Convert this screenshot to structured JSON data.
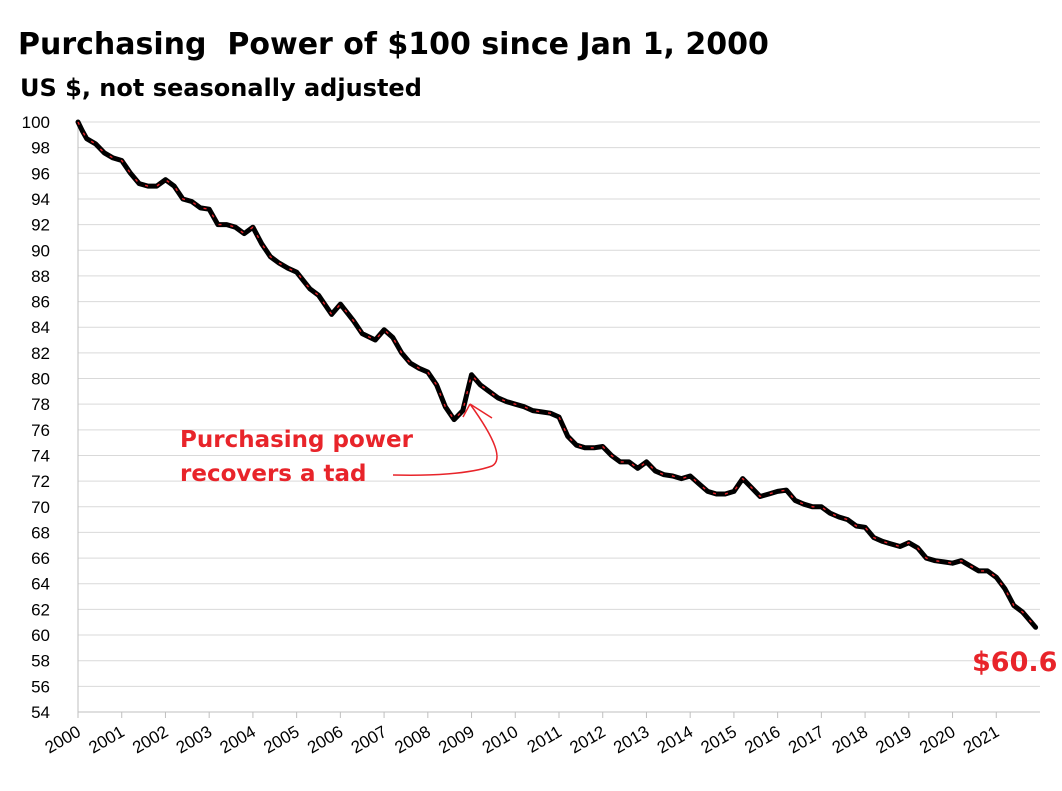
{
  "chart_data": {
    "type": "line",
    "title": "Purchasing  Power of $100 since Jan 1, 2000",
    "subtitle": "US $, not seasonally adjusted",
    "xlabel": "",
    "ylabel": "",
    "ylim": [
      54,
      100
    ],
    "xlim": [
      2000,
      2022
    ],
    "grid": true,
    "y_ticks": [
      "54",
      "56",
      "58",
      "60",
      "62",
      "64",
      "66",
      "68",
      "70",
      "72",
      "74",
      "76",
      "78",
      "80",
      "82",
      "84",
      "86",
      "88",
      "90",
      "92",
      "94",
      "96",
      "98",
      "100"
    ],
    "x_ticks": [
      "2000",
      "2001",
      "2002",
      "2003",
      "2004",
      "2005",
      "2006",
      "2007",
      "2008",
      "2009",
      "2010",
      "2011",
      "2012",
      "2013",
      "2014",
      "2015",
      "2016",
      "2017",
      "2018",
      "2019",
      "2020",
      "2021"
    ],
    "series": [
      {
        "name": "Purchasing power of $100",
        "color": "#000000",
        "highlight_color": "#e8242a",
        "x": [
          2000.0,
          2000.1,
          2000.2,
          2000.4,
          2000.6,
          2000.8,
          2001.0,
          2001.2,
          2001.4,
          2001.6,
          2001.8,
          2002.0,
          2002.2,
          2002.4,
          2002.6,
          2002.8,
          2003.0,
          2003.2,
          2003.4,
          2003.6,
          2003.8,
          2004.0,
          2004.2,
          2004.4,
          2004.6,
          2004.8,
          2005.0,
          2005.3,
          2005.5,
          2005.8,
          2006.0,
          2006.3,
          2006.5,
          2006.8,
          2007.0,
          2007.2,
          2007.4,
          2007.6,
          2007.8,
          2008.0,
          2008.2,
          2008.4,
          2008.6,
          2008.8,
          2009.0,
          2009.2,
          2009.4,
          2009.6,
          2009.8,
          2010.0,
          2010.2,
          2010.4,
          2010.6,
          2010.8,
          2011.0,
          2011.2,
          2011.4,
          2011.6,
          2011.8,
          2012.0,
          2012.2,
          2012.4,
          2012.6,
          2012.8,
          2013.0,
          2013.2,
          2013.4,
          2013.6,
          2013.8,
          2014.0,
          2014.2,
          2014.4,
          2014.6,
          2014.8,
          2015.0,
          2015.2,
          2015.4,
          2015.6,
          2015.8,
          2016.0,
          2016.2,
          2016.4,
          2016.6,
          2016.8,
          2017.0,
          2017.2,
          2017.4,
          2017.6,
          2017.8,
          2018.0,
          2018.2,
          2018.4,
          2018.6,
          2018.8,
          2019.0,
          2019.2,
          2019.4,
          2019.6,
          2019.8,
          2020.0,
          2020.2,
          2020.4,
          2020.6,
          2020.8,
          2021.0,
          2021.2,
          2021.4,
          2021.6,
          2021.8,
          2021.9
        ],
        "values": [
          100.0,
          99.3,
          98.7,
          98.3,
          97.6,
          97.2,
          97.0,
          96.0,
          95.2,
          95.0,
          95.0,
          95.5,
          95.0,
          94.0,
          93.8,
          93.3,
          93.2,
          92.0,
          92.0,
          91.8,
          91.3,
          91.8,
          90.5,
          89.5,
          89.0,
          88.6,
          88.3,
          87.0,
          86.5,
          85.0,
          85.8,
          84.5,
          83.5,
          83.0,
          83.8,
          83.2,
          82.0,
          81.2,
          80.8,
          80.5,
          79.5,
          77.8,
          76.8,
          77.5,
          80.3,
          79.5,
          79.0,
          78.5,
          78.2,
          78.0,
          77.8,
          77.5,
          77.4,
          77.3,
          77.0,
          75.5,
          74.8,
          74.6,
          74.6,
          74.7,
          74.0,
          73.5,
          73.5,
          73.0,
          73.5,
          72.8,
          72.5,
          72.4,
          72.2,
          72.4,
          71.8,
          71.2,
          71.0,
          71.0,
          71.2,
          72.2,
          71.5,
          70.8,
          71.0,
          71.2,
          71.3,
          70.5,
          70.2,
          70.0,
          70.0,
          69.5,
          69.2,
          69.0,
          68.5,
          68.4,
          67.6,
          67.3,
          67.1,
          66.9,
          67.2,
          66.8,
          66.0,
          65.8,
          65.7,
          65.6,
          65.8,
          65.4,
          65.0,
          65.0,
          64.5,
          63.6,
          62.3,
          61.8,
          61.0,
          60.6
        ]
      }
    ],
    "annotations": [
      {
        "lines": [
          "Purchasing power",
          "recovers a tad"
        ],
        "color": "#e8242a"
      },
      {
        "text": "$60.6",
        "color": "#e8242a"
      }
    ]
  }
}
